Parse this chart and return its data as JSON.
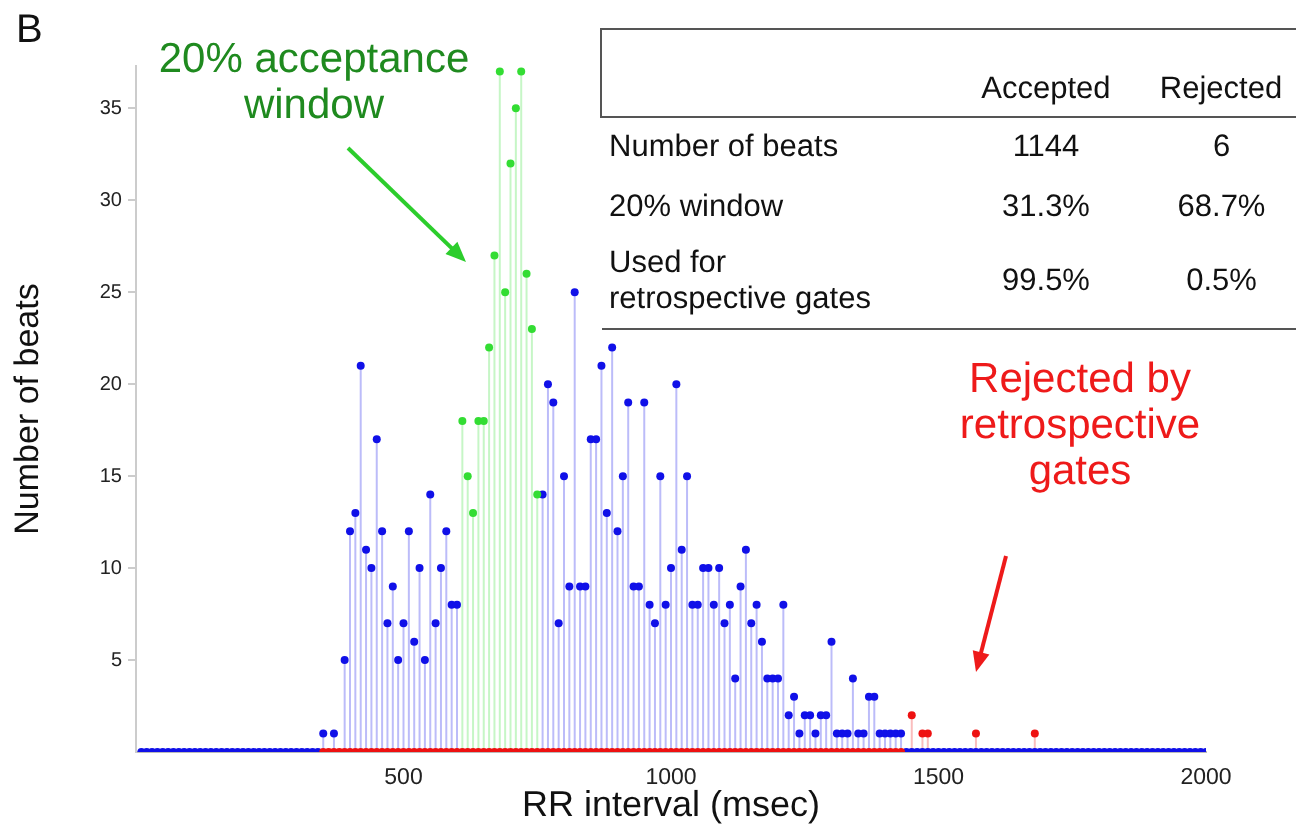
{
  "chart_data": {
    "type": "lollipop",
    "xlabel": "RR interval (msec)",
    "ylabel": "Number of beats",
    "xlim": [
      0,
      2000
    ],
    "xticks": [
      500,
      1000,
      1500,
      2000
    ],
    "ylim": [
      0,
      37.3
    ],
    "yticks": [
      5,
      10,
      15,
      20,
      25,
      30,
      35
    ],
    "grid": false,
    "legend": false,
    "marker": "circle",
    "annotations": [
      "B",
      "20% acceptance window",
      "Rejected by retrospective gates",
      "Accepted",
      "Rejected",
      "Number of beats",
      "1144",
      "6",
      "20% window",
      "31.3%",
      "68.7%",
      "Used for retrospective gates",
      "99.5%",
      "0.5%"
    ],
    "series": [
      {
        "color": "#1010e8",
        "x": [
          10,
          20,
          30,
          40,
          50,
          60,
          70,
          80,
          90,
          100,
          110,
          120,
          130,
          140,
          150,
          160,
          170,
          180,
          190,
          200,
          210,
          220,
          230,
          240,
          250,
          260,
          270,
          280,
          290,
          300,
          310,
          320,
          330,
          340,
          350,
          370,
          390,
          400,
          410,
          420,
          430,
          440,
          450,
          460,
          470,
          480,
          490,
          500,
          510,
          520,
          530,
          540,
          550,
          560,
          570,
          580,
          590,
          600,
          760,
          770,
          780,
          790,
          800,
          810,
          820,
          830,
          840,
          850,
          860,
          870,
          880,
          890,
          900,
          910,
          920,
          930,
          940,
          950,
          960,
          970,
          980,
          990,
          1000,
          1010,
          1020,
          1030,
          1040,
          1050,
          1060,
          1070,
          1080,
          1090,
          1100,
          1110,
          1120,
          1130,
          1140,
          1150,
          1160,
          1170,
          1180,
          1190,
          1200,
          1210,
          1220,
          1230,
          1240,
          1250,
          1260,
          1270,
          1280,
          1290,
          1300,
          1310,
          1320,
          1330,
          1340,
          1350,
          1360,
          1370,
          1380,
          1390,
          1400,
          1410,
          1420,
          1430,
          1440,
          1450,
          1460,
          1470,
          1480,
          1490,
          1500,
          1510,
          1520,
          1530,
          1540,
          1550,
          1560,
          1570,
          1580,
          1590,
          1600,
          1610,
          1620,
          1630,
          1640,
          1650,
          1660,
          1670,
          1680,
          1690,
          1700,
          1710,
          1720,
          1730,
          1740,
          1750,
          1760,
          1770,
          1780,
          1790,
          1800,
          1810,
          1820,
          1830,
          1840,
          1850,
          1860,
          1870,
          1880,
          1890,
          1900,
          1910,
          1920,
          1930,
          1940,
          1950,
          1960,
          1970,
          1980,
          1990,
          2000
        ],
        "values": [
          0,
          0,
          0,
          0,
          0,
          0,
          0,
          0,
          0,
          0,
          0,
          0,
          0,
          0,
          0,
          0,
          0,
          0,
          0,
          0,
          0,
          0,
          0,
          0,
          0,
          0,
          0,
          0,
          0,
          0,
          0,
          0,
          0,
          0,
          1,
          1,
          5,
          12,
          13,
          21,
          11,
          10,
          17,
          12,
          7,
          9,
          5,
          7,
          12,
          6,
          10,
          5,
          14,
          7,
          10,
          12,
          8,
          8,
          14,
          20,
          19,
          7,
          15,
          9,
          25,
          9,
          9,
          17,
          17,
          21,
          13,
          22,
          12,
          15,
          19,
          9,
          9,
          19,
          8,
          7,
          15,
          8,
          10,
          20,
          11,
          15,
          8,
          8,
          10,
          10,
          8,
          10,
          7,
          8,
          4,
          9,
          11,
          7,
          8,
          6,
          4,
          4,
          4,
          8,
          2,
          3,
          1,
          2,
          2,
          1,
          2,
          2,
          6,
          1,
          1,
          1,
          4,
          1,
          1,
          3,
          3,
          1,
          1,
          1,
          1,
          1,
          0,
          0,
          0,
          0,
          0,
          0,
          0,
          0,
          0,
          0,
          0,
          0,
          0,
          0,
          0,
          0,
          0,
          0,
          0,
          0,
          0,
          0,
          0,
          0,
          0,
          0,
          0,
          0,
          0,
          0,
          0,
          0,
          0,
          0,
          0,
          0,
          0,
          0,
          0,
          0,
          0,
          0,
          0,
          0,
          0,
          0,
          0,
          0,
          0,
          0,
          0,
          0,
          0,
          0,
          0,
          0,
          0
        ]
      },
      {
        "color": "#33dd33",
        "x": [
          610,
          620,
          630,
          640,
          650,
          660,
          670,
          680,
          690,
          700,
          710,
          720,
          730,
          740,
          750
        ],
        "values": [
          18,
          15,
          13,
          18,
          18,
          22,
          27,
          37,
          25,
          32,
          35,
          37,
          26,
          23,
          14
        ]
      },
      {
        "color": "#ee1111",
        "x": [
          350,
          360,
          370,
          380,
          390,
          400,
          410,
          420,
          430,
          440,
          450,
          460,
          470,
          480,
          490,
          500,
          510,
          520,
          530,
          540,
          550,
          560,
          570,
          580,
          590,
          600,
          610,
          620,
          630,
          640,
          650,
          660,
          670,
          680,
          690,
          700,
          710,
          720,
          730,
          740,
          750,
          760,
          770,
          780,
          790,
          800,
          810,
          820,
          830,
          840,
          850,
          860,
          870,
          880,
          890,
          900,
          910,
          920,
          930,
          940,
          950,
          960,
          970,
          980,
          990,
          1000,
          1010,
          1020,
          1030,
          1040,
          1050,
          1060,
          1070,
          1080,
          1090,
          1100,
          1110,
          1120,
          1130,
          1140,
          1150,
          1160,
          1170,
          1180,
          1190,
          1200,
          1210,
          1220,
          1230,
          1240,
          1250,
          1260,
          1270,
          1280,
          1290,
          1300,
          1310,
          1320,
          1330,
          1340,
          1350,
          1360,
          1370,
          1380,
          1390,
          1400,
          1410,
          1420,
          1430,
          1450,
          1470,
          1480,
          1570,
          1680
        ],
        "values": [
          0,
          0,
          0,
          0,
          0,
          0,
          0,
          0,
          0,
          0,
          0,
          0,
          0,
          0,
          0,
          0,
          0,
          0,
          0,
          0,
          0,
          0,
          0,
          0,
          0,
          0,
          0,
          0,
          0,
          0,
          0,
          0,
          0,
          0,
          0,
          0,
          0,
          0,
          0,
          0,
          0,
          0,
          0,
          0,
          0,
          0,
          0,
          0,
          0,
          0,
          0,
          0,
          0,
          0,
          0,
          0,
          0,
          0,
          0,
          0,
          0,
          0,
          0,
          0,
          0,
          0,
          0,
          0,
          0,
          0,
          0,
          0,
          0,
          0,
          0,
          0,
          0,
          0,
          0,
          0,
          0,
          0,
          0,
          0,
          0,
          0,
          0,
          0,
          0,
          0,
          0,
          0,
          0,
          0,
          0,
          0,
          0,
          0,
          0,
          0,
          0,
          0,
          0,
          0,
          0,
          0,
          0,
          0,
          0,
          2,
          1,
          1,
          1,
          1
        ]
      }
    ]
  }
}
